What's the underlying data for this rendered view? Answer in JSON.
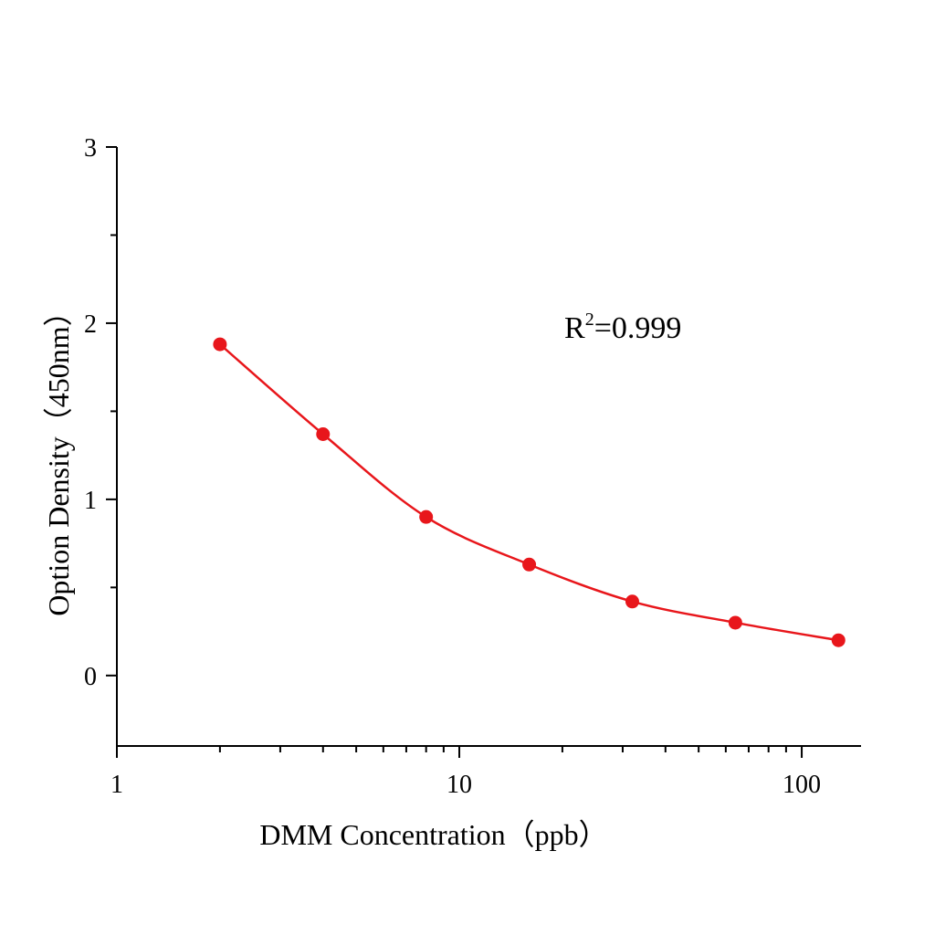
{
  "chart_data": {
    "type": "scatter",
    "xlabel": "DMM Concentration（ppb）",
    "ylabel": "Option Density（450nm）",
    "x_scale": "log",
    "xlim": [
      1,
      149
    ],
    "ylim": [
      -0.4,
      3
    ],
    "x_ticks": [
      1,
      10,
      100
    ],
    "x_tick_labels": [
      "1",
      "10",
      "100"
    ],
    "y_ticks": [
      0,
      1,
      2,
      3
    ],
    "y_tick_labels": [
      "0",
      "1",
      "2",
      "3"
    ],
    "grid": false,
    "annotation": {
      "base": "R",
      "sup": "2",
      "rest": "=0.999"
    },
    "series": [
      {
        "x": [
          2,
          4,
          8,
          16,
          32,
          64,
          128
        ],
        "y": [
          1.88,
          1.37,
          0.9,
          0.63,
          0.42,
          0.3,
          0.2
        ],
        "color": "#e8161b",
        "fit_curve": true
      }
    ]
  }
}
